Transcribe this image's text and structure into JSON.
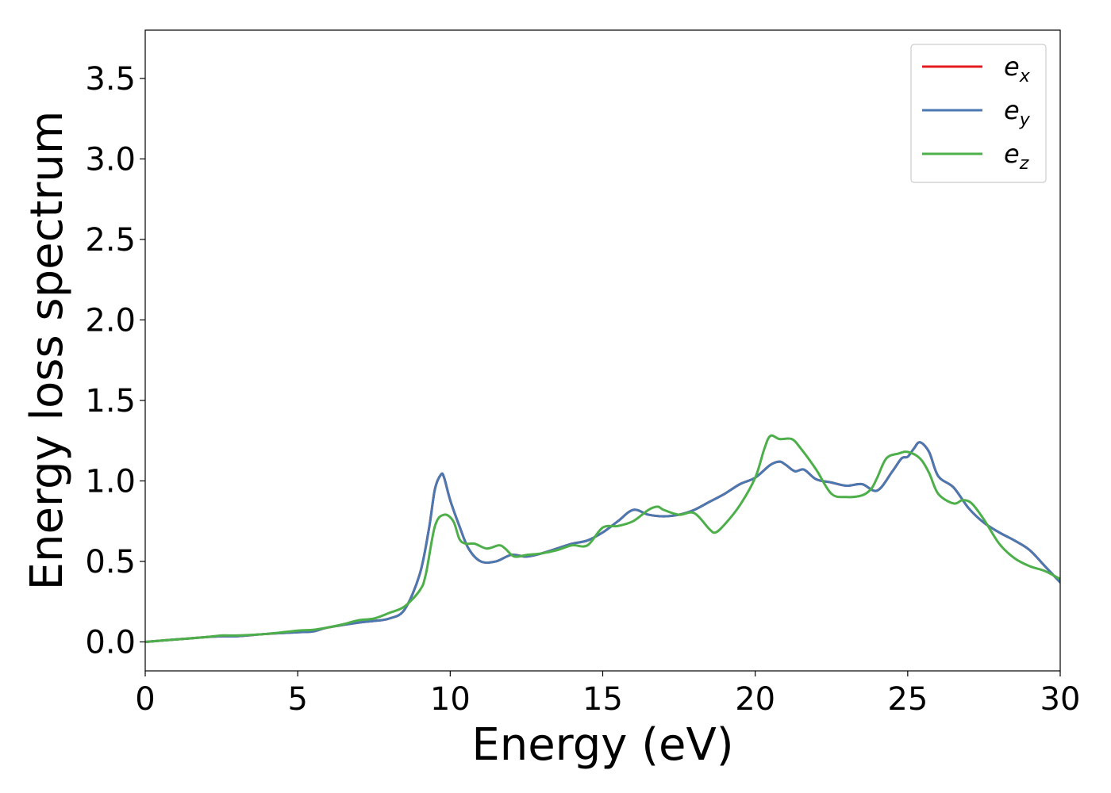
{
  "chart_data": {
    "type": "line",
    "xlabel": "Energy (eV)",
    "ylabel": "Energy loss spectrum",
    "xlim": [
      0,
      30
    ],
    "ylim": [
      -0.18,
      3.8
    ],
    "xticks": [
      0,
      5,
      10,
      15,
      20,
      25,
      30
    ],
    "xtick_labels": [
      "0",
      "5",
      "10",
      "15",
      "20",
      "25",
      "30"
    ],
    "yticks": [
      0.0,
      0.5,
      1.0,
      1.5,
      2.0,
      2.5,
      3.0,
      3.5
    ],
    "ytick_labels": [
      "0.0",
      "0.5",
      "1.0",
      "1.5",
      "2.0",
      "2.5",
      "3.0",
      "3.5"
    ],
    "grid": false,
    "legend_position": "top-right",
    "series": [
      {
        "name": "e",
        "subscript": "x",
        "color": "#e41a1c",
        "x": [
          0,
          1,
          2,
          2.5,
          3,
          4,
          5,
          5.5,
          6,
          7,
          7.5,
          8,
          8.5,
          9,
          9.3,
          9.5,
          9.7,
          9.8,
          10,
          10.3,
          10.6,
          11,
          11.5,
          12,
          12.5,
          13,
          13.5,
          14,
          14.5,
          15,
          15.5,
          16,
          16.5,
          17,
          17.5,
          18,
          18.5,
          19,
          19.5,
          20,
          20.5,
          20.8,
          21,
          21.3,
          21.6,
          22,
          22.5,
          23,
          23.5,
          24,
          24.5,
          24.8,
          25,
          25.2,
          25.4,
          25.7,
          26,
          26.5,
          27,
          27.5,
          28,
          28.5,
          29,
          29.5,
          30
        ],
        "y": [
          0.0,
          0.015,
          0.03,
          0.035,
          0.035,
          0.05,
          0.06,
          0.065,
          0.09,
          0.12,
          0.13,
          0.145,
          0.2,
          0.42,
          0.7,
          0.95,
          1.04,
          1.02,
          0.88,
          0.72,
          0.58,
          0.5,
          0.5,
          0.54,
          0.53,
          0.55,
          0.58,
          0.61,
          0.63,
          0.68,
          0.75,
          0.82,
          0.79,
          0.78,
          0.79,
          0.82,
          0.87,
          0.92,
          0.98,
          1.02,
          1.1,
          1.12,
          1.1,
          1.06,
          1.07,
          1.01,
          0.99,
          0.97,
          0.98,
          0.94,
          1.06,
          1.14,
          1.15,
          1.2,
          1.24,
          1.18,
          1.03,
          0.96,
          0.83,
          0.74,
          0.68,
          0.63,
          0.57,
          0.47,
          0.37
        ]
      },
      {
        "name": "e",
        "subscript": "y",
        "color": "#4a78b0",
        "x": [
          0,
          1,
          2,
          2.5,
          3,
          4,
          5,
          5.5,
          6,
          7,
          7.5,
          8,
          8.5,
          9,
          9.3,
          9.5,
          9.7,
          9.8,
          10,
          10.3,
          10.6,
          11,
          11.5,
          12,
          12.5,
          13,
          13.5,
          14,
          14.5,
          15,
          15.5,
          16,
          16.5,
          17,
          17.5,
          18,
          18.5,
          19,
          19.5,
          20,
          20.5,
          20.8,
          21,
          21.3,
          21.6,
          22,
          22.5,
          23,
          23.5,
          24,
          24.5,
          24.8,
          25,
          25.2,
          25.4,
          25.7,
          26,
          26.5,
          27,
          27.5,
          28,
          28.5,
          29,
          29.5,
          30
        ],
        "y": [
          0.0,
          0.015,
          0.03,
          0.035,
          0.035,
          0.05,
          0.06,
          0.065,
          0.09,
          0.12,
          0.13,
          0.145,
          0.2,
          0.42,
          0.7,
          0.95,
          1.04,
          1.02,
          0.88,
          0.72,
          0.58,
          0.5,
          0.5,
          0.54,
          0.53,
          0.55,
          0.58,
          0.61,
          0.63,
          0.68,
          0.75,
          0.82,
          0.79,
          0.78,
          0.79,
          0.82,
          0.87,
          0.92,
          0.98,
          1.02,
          1.1,
          1.12,
          1.1,
          1.06,
          1.07,
          1.01,
          0.99,
          0.97,
          0.98,
          0.94,
          1.06,
          1.14,
          1.15,
          1.2,
          1.24,
          1.18,
          1.03,
          0.96,
          0.83,
          0.74,
          0.68,
          0.63,
          0.57,
          0.47,
          0.37
        ]
      },
      {
        "name": "e",
        "subscript": "z",
        "color": "#4daf4a",
        "x": [
          0,
          1,
          2,
          2.5,
          3,
          4,
          5,
          5.5,
          6,
          6.5,
          7,
          7.5,
          8,
          8.5,
          9,
          9.2,
          9.5,
          9.8,
          10.1,
          10.3,
          10.5,
          10.8,
          11.2,
          11.6,
          11.8,
          12.1,
          12.5,
          13,
          13.5,
          14,
          14.5,
          15,
          15.5,
          16,
          16.5,
          16.8,
          17,
          17.5,
          18,
          18.5,
          18.7,
          19,
          19.5,
          20,
          20.3,
          20.5,
          20.8,
          21.2,
          21.5,
          22,
          22.5,
          23,
          23.5,
          23.8,
          24,
          24.3,
          24.7,
          25,
          25.4,
          25.7,
          26,
          26.5,
          26.8,
          27.1,
          27.5,
          28,
          28.5,
          29,
          29.5,
          30
        ],
        "y": [
          0.0,
          0.015,
          0.03,
          0.04,
          0.04,
          0.05,
          0.07,
          0.075,
          0.09,
          0.11,
          0.135,
          0.145,
          0.18,
          0.22,
          0.32,
          0.42,
          0.72,
          0.79,
          0.75,
          0.64,
          0.61,
          0.61,
          0.58,
          0.6,
          0.58,
          0.53,
          0.54,
          0.55,
          0.57,
          0.6,
          0.6,
          0.71,
          0.72,
          0.75,
          0.82,
          0.84,
          0.82,
          0.79,
          0.8,
          0.7,
          0.68,
          0.73,
          0.85,
          1.02,
          1.2,
          1.28,
          1.26,
          1.26,
          1.2,
          1.07,
          0.92,
          0.9,
          0.91,
          0.95,
          1.02,
          1.14,
          1.17,
          1.18,
          1.14,
          1.05,
          0.92,
          0.86,
          0.88,
          0.86,
          0.76,
          0.61,
          0.52,
          0.47,
          0.44,
          0.39
        ]
      }
    ]
  }
}
